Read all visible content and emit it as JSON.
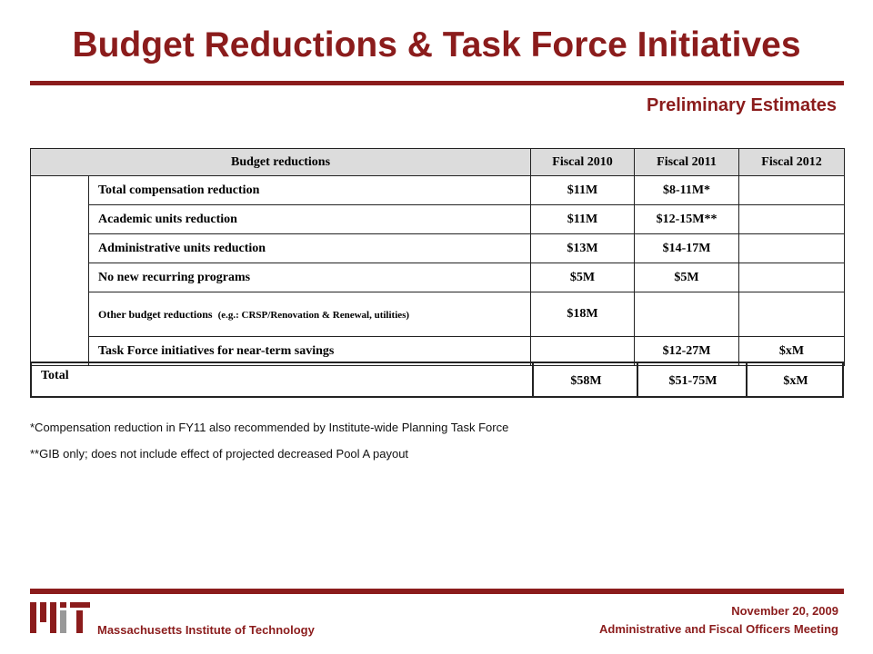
{
  "header": {
    "title": "Budget Reductions & Task Force Initiatives",
    "subtitle": "Preliminary Estimates"
  },
  "table": {
    "columns": [
      "Budget reductions",
      "Fiscal 2010",
      "Fiscal 2011",
      "Fiscal 2012"
    ],
    "rows": [
      {
        "label": "Total compensation reduction",
        "fiscal_2010": "$11M",
        "fiscal_2011": "$8-11M*"
      },
      {
        "label": "Academic units reduction",
        "fiscal_2010": "$11M",
        "fiscal_2011": "$12-15M**"
      },
      {
        "label": "Administrative units reduction",
        "fiscal_2010": "$13M",
        "fiscal_2011": "$14-17M"
      },
      {
        "label": "No new recurring programs",
        "fiscal_2010": "$5M",
        "fiscal_2011": "$5M"
      },
      {
        "label": "Other budget reductions",
        "label_note": "(e.g.: CRSP/Renovation & Renewal, utilities)",
        "fiscal_2010": "$18M"
      },
      {
        "label": "Task Force initiatives for near-term savings",
        "fiscal_2011": "$12-27M",
        "fiscal_2012": "$xM"
      }
    ],
    "total": {
      "label": "Total",
      "fiscal_2010": "$58M",
      "fiscal_2011": "$51-75M",
      "fiscal_2012": "$xM"
    }
  },
  "footnotes": [
    "*Compensation reduction in FY11 also recommended by Institute-wide Planning Task Force",
    "**GIB only; does not include effect of projected decreased Pool A payout"
  ],
  "footer": {
    "organization": "Massachusetts Institute of Technology",
    "date": "November 20, 2009",
    "event": "Administrative and Fiscal Officers Meeting"
  }
}
